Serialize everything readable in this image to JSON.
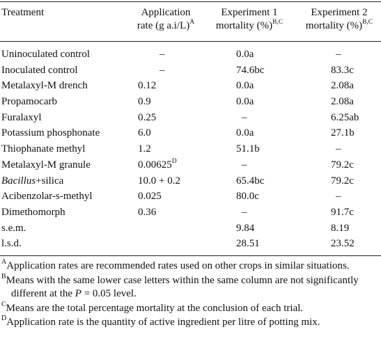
{
  "header": {
    "treatment": "Treatment",
    "rate_line1": "Application",
    "rate_line2": "rate (g a.i/L)",
    "rate_sup": "A",
    "exp1_line1": "Experiment 1",
    "exp1_line2": "mortality (%)",
    "exp1_sup": "B,C",
    "exp2_line1": "Experiment 2",
    "exp2_line2": "mortality (%)",
    "exp2_sup": "B,C"
  },
  "rows": [
    {
      "name": "Uninoculated control",
      "rate": "–",
      "exp1": "0.0a",
      "exp2": "–"
    },
    {
      "name": "Inoculated control",
      "rate": "–",
      "exp1": "74.6bc",
      "exp2": "83.3c"
    },
    {
      "name": "Metalaxyl-M drench",
      "rate": "0.12",
      "exp1": "0.0a",
      "exp2": "2.08a"
    },
    {
      "name": "Propamocarb",
      "rate": "0.9",
      "exp1": "0.0a",
      "exp2": "2.08a"
    },
    {
      "name": "Furalaxyl",
      "rate": "0.25",
      "exp1": "–",
      "exp2": "6.25ab"
    },
    {
      "name": "Potassium phosphonate",
      "rate": "6.0",
      "exp1": "0.0a",
      "exp2": "27.1b"
    },
    {
      "name": "Thiophanate methyl",
      "rate": "1.2",
      "exp1": "51.1b",
      "exp2": "–"
    },
    {
      "name": "Metalaxyl-M granule",
      "rate": "0.00625",
      "rate_sup": "D",
      "exp1": "–",
      "exp2": "79.2c"
    },
    {
      "name_italic": "Bacillus",
      "name": "+silica",
      "rate": "10.0 + 0.2",
      "exp1": "65.4bc",
      "exp2": "79.2c"
    },
    {
      "name": "Acibenzolar-s-methyl",
      "rate": "0.025",
      "exp1": "80.0c",
      "exp2": "–"
    },
    {
      "name": "Dimethomorph",
      "rate": "0.36",
      "exp1": "–",
      "exp2": "91.7c"
    },
    {
      "name": "s.e.m.",
      "rate": "",
      "exp1": "9.84",
      "exp2": "8.19"
    },
    {
      "name": "l.s.d.",
      "rate": "",
      "exp1": "28.51",
      "exp2": "23.52"
    }
  ],
  "notes": {
    "a_mark": "A",
    "a_text": "Application rates are recommended rates used on other crops in similar situations.",
    "b_mark": "B",
    "b_text_1": "Means with the same lower case letters within the same column are not significantly different at the ",
    "b_p": "P",
    "b_text_2": " = 0.05 level.",
    "c_mark": "C",
    "c_text": "Means are the total percentage mortality at the conclusion of each trial.",
    "d_mark": "D",
    "d_text": "Application rate is the quantity of active ingredient per litre of potting mix."
  }
}
